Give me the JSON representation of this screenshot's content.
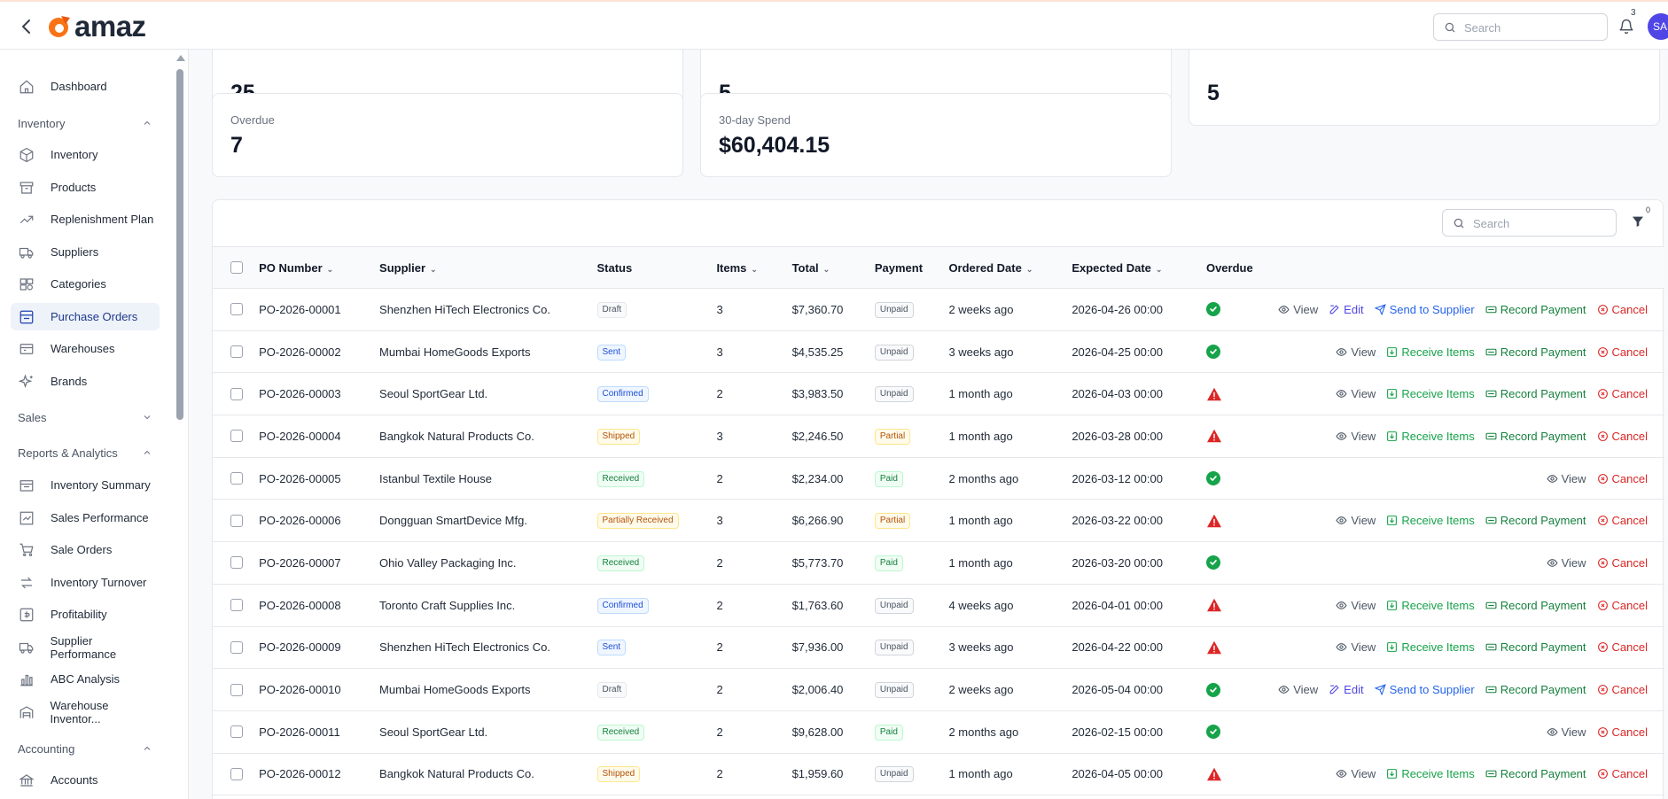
{
  "header": {
    "brand": "amaz",
    "search_placeholder": "Search",
    "notification_count": "3",
    "avatar_initials": "SA"
  },
  "sidebar": {
    "dashboard": "Dashboard",
    "sections": {
      "inventory": "Inventory",
      "sales": "Sales",
      "reports": "Reports & Analytics",
      "accounting": "Accounting"
    },
    "items": {
      "inventory": "Inventory",
      "products": "Products",
      "replenishment": "Replenishment Plan",
      "suppliers": "Suppliers",
      "categories": "Categories",
      "purchase_orders": "Purchase Orders",
      "warehouses": "Warehouses",
      "brands": "Brands",
      "inventory_summary": "Inventory Summary",
      "sales_performance": "Sales Performance",
      "sale_orders": "Sale Orders",
      "inventory_turnover": "Inventory Turnover",
      "profitability": "Profitability",
      "supplier_performance": "Supplier Performance",
      "abc_analysis": "ABC Analysis",
      "warehouse_inventory": "Warehouse Inventor...",
      "accounts": "Accounts"
    },
    "active": "Purchase Orders"
  },
  "stats": {
    "top_values": [
      "25",
      "5",
      "5"
    ],
    "overdue_label": "Overdue",
    "overdue_value": "7",
    "spend_label": "30-day Spend",
    "spend_value": "$60,404.15"
  },
  "table": {
    "search_placeholder": "Search",
    "filter_count": "0",
    "columns": {
      "po": "PO Number",
      "supplier": "Supplier",
      "status": "Status",
      "items": "Items",
      "total": "Total",
      "payment": "Payment",
      "ordered": "Ordered Date",
      "expected": "Expected Date",
      "overdue": "Overdue"
    },
    "action_labels": {
      "view": "View",
      "edit": "Edit",
      "send": "Send to Supplier",
      "receive": "Receive Items",
      "record": "Record Payment",
      "cancel": "Cancel"
    },
    "rows": [
      {
        "po": "PO-2026-00001",
        "supplier": "Shenzhen HiTech Electronics Co.",
        "status": "Draft",
        "items": "3",
        "total": "$7,360.70",
        "payment": "Unpaid",
        "ordered": "2 weeks ago",
        "expected": "2026-04-26 00:00",
        "overdue": false,
        "actions": [
          "view",
          "edit",
          "send",
          "record",
          "cancel"
        ]
      },
      {
        "po": "PO-2026-00002",
        "supplier": "Mumbai HomeGoods Exports",
        "status": "Sent",
        "items": "3",
        "total": "$4,535.25",
        "payment": "Unpaid",
        "ordered": "3 weeks ago",
        "expected": "2026-04-25 00:00",
        "overdue": false,
        "actions": [
          "view",
          "receive",
          "record",
          "cancel"
        ]
      },
      {
        "po": "PO-2026-00003",
        "supplier": "Seoul SportGear Ltd.",
        "status": "Confirmed",
        "items": "2",
        "total": "$3,983.50",
        "payment": "Unpaid",
        "ordered": "1 month ago",
        "expected": "2026-04-03 00:00",
        "overdue": true,
        "actions": [
          "view",
          "receive",
          "record",
          "cancel"
        ]
      },
      {
        "po": "PO-2026-00004",
        "supplier": "Bangkok Natural Products Co.",
        "status": "Shipped",
        "items": "3",
        "total": "$2,246.50",
        "payment": "Partial",
        "ordered": "1 month ago",
        "expected": "2026-03-28 00:00",
        "overdue": true,
        "actions": [
          "view",
          "receive",
          "record",
          "cancel"
        ]
      },
      {
        "po": "PO-2026-00005",
        "supplier": "Istanbul Textile House",
        "status": "Received",
        "items": "2",
        "total": "$2,234.00",
        "payment": "Paid",
        "ordered": "2 months ago",
        "expected": "2026-03-12 00:00",
        "overdue": false,
        "actions": [
          "view",
          "cancel"
        ]
      },
      {
        "po": "PO-2026-00006",
        "supplier": "Dongguan SmartDevice Mfg.",
        "status": "Partially Received",
        "items": "3",
        "total": "$6,266.90",
        "payment": "Partial",
        "ordered": "1 month ago",
        "expected": "2026-03-22 00:00",
        "overdue": true,
        "actions": [
          "view",
          "receive",
          "record",
          "cancel"
        ]
      },
      {
        "po": "PO-2026-00007",
        "supplier": "Ohio Valley Packaging Inc.",
        "status": "Received",
        "items": "2",
        "total": "$5,773.70",
        "payment": "Paid",
        "ordered": "1 month ago",
        "expected": "2026-03-20 00:00",
        "overdue": false,
        "actions": [
          "view",
          "cancel"
        ]
      },
      {
        "po": "PO-2026-00008",
        "supplier": "Toronto Craft Supplies Inc.",
        "status": "Confirmed",
        "items": "2",
        "total": "$1,763.60",
        "payment": "Unpaid",
        "ordered": "4 weeks ago",
        "expected": "2026-04-01 00:00",
        "overdue": true,
        "actions": [
          "view",
          "receive",
          "record",
          "cancel"
        ]
      },
      {
        "po": "PO-2026-00009",
        "supplier": "Shenzhen HiTech Electronics Co.",
        "status": "Sent",
        "items": "2",
        "total": "$7,936.00",
        "payment": "Unpaid",
        "ordered": "3 weeks ago",
        "expected": "2026-04-22 00:00",
        "overdue": true,
        "actions": [
          "view",
          "receive",
          "record",
          "cancel"
        ]
      },
      {
        "po": "PO-2026-00010",
        "supplier": "Mumbai HomeGoods Exports",
        "status": "Draft",
        "items": "2",
        "total": "$2,006.40",
        "payment": "Unpaid",
        "ordered": "2 weeks ago",
        "expected": "2026-05-04 00:00",
        "overdue": false,
        "actions": [
          "view",
          "edit",
          "send",
          "record",
          "cancel"
        ]
      },
      {
        "po": "PO-2026-00011",
        "supplier": "Seoul SportGear Ltd.",
        "status": "Received",
        "items": "2",
        "total": "$9,628.00",
        "payment": "Paid",
        "ordered": "2 months ago",
        "expected": "2026-02-15 00:00",
        "overdue": false,
        "actions": [
          "view",
          "cancel"
        ]
      },
      {
        "po": "PO-2026-00012",
        "supplier": "Bangkok Natural Products Co.",
        "status": "Shipped",
        "items": "2",
        "total": "$1,959.60",
        "payment": "Unpaid",
        "ordered": "1 month ago",
        "expected": "2026-04-05 00:00",
        "overdue": true,
        "actions": [
          "view",
          "receive",
          "record",
          "cancel"
        ]
      }
    ]
  }
}
